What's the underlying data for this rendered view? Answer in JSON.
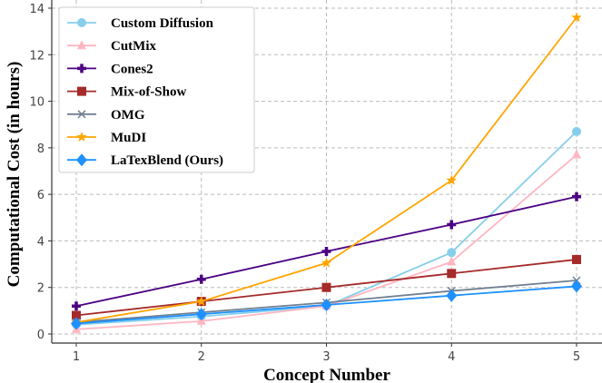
{
  "chart_data": {
    "type": "line",
    "title": "",
    "xlabel": "Concept Number",
    "ylabel": "Computational Cost (in hours)",
    "x": [
      1,
      2,
      3,
      4,
      5
    ],
    "xlim": [
      0.8,
      5.2
    ],
    "ylim": [
      -0.4,
      14.2
    ],
    "xticks": [
      1,
      2,
      3,
      4,
      5
    ],
    "yticks": [
      0,
      2,
      4,
      6,
      8,
      10,
      12,
      14
    ],
    "grid": true,
    "legend_position": "top-left",
    "series": [
      {
        "name": "Custom Diffusion",
        "color": "#87ceeb",
        "marker": "circle",
        "values": [
          0.4,
          0.75,
          1.2,
          3.5,
          8.7
        ]
      },
      {
        "name": "CutMix",
        "color": "#ffb6c1",
        "marker": "triangle",
        "values": [
          0.2,
          0.55,
          1.2,
          3.1,
          7.7
        ]
      },
      {
        "name": "Cones2",
        "color": "#4b0082",
        "marker": "plus",
        "values": [
          1.2,
          2.35,
          3.55,
          4.7,
          5.9
        ]
      },
      {
        "name": "Mix-of-Show",
        "color": "#a52a2a",
        "marker": "square",
        "values": [
          0.8,
          1.4,
          2.0,
          2.6,
          3.2
        ]
      },
      {
        "name": "OMG",
        "color": "#708090",
        "marker": "x",
        "values": [
          0.5,
          0.93,
          1.35,
          1.85,
          2.3
        ]
      },
      {
        "name": "MuDI",
        "color": "#ffa500",
        "marker": "star",
        "values": [
          0.5,
          1.4,
          3.05,
          6.6,
          13.6
        ]
      },
      {
        "name": "LaTexBlend (Ours)",
        "color": "#1e90ff",
        "marker": "diamond",
        "values": [
          0.45,
          0.85,
          1.25,
          1.65,
          2.05
        ]
      }
    ]
  }
}
